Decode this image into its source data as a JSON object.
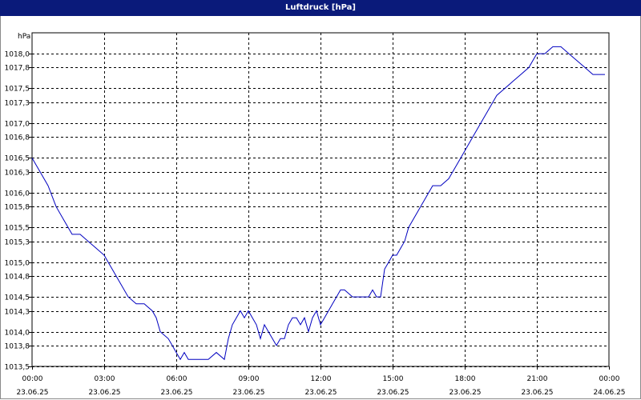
{
  "chart_data": {
    "type": "line",
    "title": "Luftdruck [hPa]",
    "ylabel": "hPa",
    "xlabel": "",
    "ylim": [
      1013.5,
      1018.3
    ],
    "y_ticks": [
      "1013,5",
      "1013,8",
      "1014,0",
      "1014,3",
      "1014,5",
      "1014,8",
      "1015,0",
      "1015,3",
      "1015,5",
      "1015,8",
      "1016,0",
      "1016,3",
      "1016,5",
      "1016,8",
      "1017,0",
      "1017,3",
      "1017,5",
      "1017,8",
      "1018,0"
    ],
    "x_ticks": [
      {
        "time": "00:00",
        "date": "23.06.25"
      },
      {
        "time": "03:00",
        "date": "23.06.25"
      },
      {
        "time": "06:00",
        "date": "23.06.25"
      },
      {
        "time": "09:00",
        "date": "23.06.25"
      },
      {
        "time": "12:00",
        "date": "23.06.25"
      },
      {
        "time": "15:00",
        "date": "23.06.25"
      },
      {
        "time": "18:00",
        "date": "23.06.25"
      },
      {
        "time": "21:00",
        "date": "23.06.25"
      },
      {
        "time": "00:00",
        "date": "24.06.25"
      }
    ],
    "grid": true,
    "series": [
      {
        "color": "#0000c0",
        "x": [
          "00:00",
          "00:10",
          "00:20",
          "00:40",
          "01:00",
          "01:20",
          "01:40",
          "02:00",
          "02:20",
          "02:40",
          "03:00",
          "03:10",
          "03:20",
          "03:40",
          "04:00",
          "04:20",
          "04:40",
          "05:00",
          "05:10",
          "05:20",
          "05:40",
          "05:50",
          "06:00",
          "06:10",
          "06:20",
          "06:30",
          "06:40",
          "06:50",
          "07:00",
          "07:20",
          "07:40",
          "08:00",
          "08:10",
          "08:20",
          "08:30",
          "08:40",
          "08:50",
          "09:00",
          "09:10",
          "09:20",
          "09:30",
          "09:40",
          "09:50",
          "10:00",
          "10:10",
          "10:20",
          "10:30",
          "10:40",
          "10:50",
          "11:00",
          "11:10",
          "11:20",
          "11:30",
          "11:40",
          "11:50",
          "12:00",
          "12:10",
          "12:20",
          "12:30",
          "12:40",
          "12:50",
          "13:00",
          "13:20",
          "13:40",
          "14:00",
          "14:10",
          "14:20",
          "14:30",
          "14:40",
          "14:50",
          "15:00",
          "15:10",
          "15:20",
          "15:30",
          "15:40",
          "16:00",
          "16:20",
          "16:40",
          "17:00",
          "17:20",
          "17:40",
          "18:00",
          "18:20",
          "18:40",
          "19:00",
          "19:20",
          "19:40",
          "20:00",
          "20:20",
          "20:40",
          "21:00",
          "21:20",
          "21:40",
          "22:00",
          "22:20",
          "22:40",
          "23:00",
          "23:20",
          "23:40",
          "23:50"
        ],
        "y": [
          1016.5,
          1016.4,
          1016.3,
          1016.1,
          1015.8,
          1015.6,
          1015.4,
          1015.4,
          1015.3,
          1015.2,
          1015.1,
          1015.0,
          1014.9,
          1014.7,
          1014.5,
          1014.4,
          1014.4,
          1014.3,
          1014.2,
          1014.0,
          1013.9,
          1013.8,
          1013.7,
          1013.6,
          1013.7,
          1013.6,
          1013.6,
          1013.6,
          1013.6,
          1013.6,
          1013.7,
          1013.6,
          1013.9,
          1014.1,
          1014.2,
          1014.3,
          1014.2,
          1014.3,
          1014.2,
          1014.1,
          1013.9,
          1014.1,
          1014.0,
          1013.9,
          1013.8,
          1013.9,
          1013.9,
          1014.1,
          1014.2,
          1014.2,
          1014.1,
          1014.2,
          1014.0,
          1014.2,
          1014.3,
          1014.1,
          1014.2,
          1014.3,
          1014.4,
          1014.5,
          1014.6,
          1014.6,
          1014.5,
          1014.5,
          1014.5,
          1014.6,
          1014.5,
          1014.5,
          1014.9,
          1015.0,
          1015.1,
          1015.1,
          1015.2,
          1015.3,
          1015.5,
          1015.7,
          1015.9,
          1016.1,
          1016.1,
          1016.2,
          1016.4,
          1016.6,
          1016.8,
          1017.0,
          1017.2,
          1017.4,
          1017.5,
          1017.6,
          1017.7,
          1017.8,
          1018.0,
          1018.0,
          1018.1,
          1018.1,
          1018.0,
          1017.9,
          1017.8,
          1017.7,
          1017.7,
          1017.7
        ]
      }
    ]
  }
}
